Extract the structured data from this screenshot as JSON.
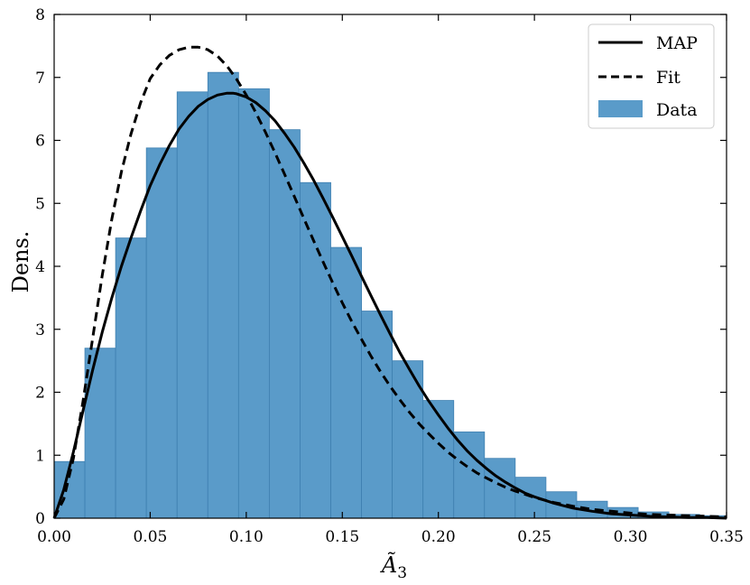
{
  "chart_data": {
    "type": "bar",
    "xlabel": "Ã₃",
    "ylabel": "Dens.",
    "xlim": [
      0,
      0.35
    ],
    "ylim": [
      0,
      8
    ],
    "grid": false,
    "legend_position": "top-right",
    "x_ticks": [
      "0.00",
      "0.05",
      "0.10",
      "0.15",
      "0.20",
      "0.25",
      "0.30",
      "0.35"
    ],
    "y_ticks": [
      "0",
      "1",
      "2",
      "3",
      "4",
      "5",
      "6",
      "7",
      "8"
    ],
    "histogram": {
      "name": "Data",
      "color": "#5a9bc9",
      "edge_color": "#3e7fb0",
      "bin_edges": [
        0.0,
        0.016,
        0.032,
        0.048,
        0.064,
        0.08,
        0.096,
        0.112,
        0.128,
        0.144,
        0.16,
        0.176,
        0.192,
        0.208,
        0.224,
        0.24,
        0.256,
        0.272,
        0.288,
        0.304,
        0.32,
        0.336,
        0.35
      ],
      "densities": [
        0.9,
        2.7,
        4.45,
        5.88,
        6.77,
        7.08,
        6.82,
        6.17,
        5.33,
        4.3,
        3.29,
        2.5,
        1.87,
        1.37,
        0.95,
        0.65,
        0.42,
        0.27,
        0.17,
        0.1,
        0.06,
        0.04
      ]
    },
    "series": [
      {
        "name": "MAP",
        "style": "solid",
        "color": "#000000",
        "x": [
          0.0,
          0.005,
          0.01,
          0.015,
          0.02,
          0.025,
          0.03,
          0.035,
          0.04,
          0.045,
          0.05,
          0.055,
          0.06,
          0.065,
          0.07,
          0.075,
          0.08,
          0.085,
          0.09,
          0.093,
          0.095,
          0.1,
          0.105,
          0.11,
          0.115,
          0.12,
          0.125,
          0.13,
          0.135,
          0.14,
          0.145,
          0.15,
          0.155,
          0.16,
          0.165,
          0.17,
          0.175,
          0.18,
          0.185,
          0.19,
          0.195,
          0.2,
          0.205,
          0.21,
          0.215,
          0.22,
          0.225,
          0.23,
          0.235,
          0.24,
          0.245,
          0.25,
          0.26,
          0.27,
          0.28,
          0.29,
          0.3,
          0.31,
          0.32,
          0.33,
          0.34,
          0.35
        ],
        "y": [
          0.0,
          0.45,
          1.05,
          1.7,
          2.35,
          2.95,
          3.5,
          4.0,
          4.45,
          4.88,
          5.28,
          5.62,
          5.92,
          6.18,
          6.38,
          6.54,
          6.65,
          6.72,
          6.75,
          6.75,
          6.74,
          6.69,
          6.6,
          6.47,
          6.31,
          6.11,
          5.89,
          5.64,
          5.37,
          5.08,
          4.78,
          4.47,
          4.16,
          3.84,
          3.53,
          3.22,
          2.92,
          2.63,
          2.36,
          2.1,
          1.86,
          1.64,
          1.43,
          1.24,
          1.07,
          0.92,
          0.79,
          0.67,
          0.57,
          0.48,
          0.4,
          0.34,
          0.24,
          0.16,
          0.11,
          0.07,
          0.05,
          0.03,
          0.02,
          0.01,
          0.01,
          0.0
        ]
      },
      {
        "name": "Fit",
        "style": "dashed",
        "color": "#000000",
        "x": [
          0.0,
          0.005,
          0.01,
          0.015,
          0.02,
          0.025,
          0.03,
          0.035,
          0.04,
          0.045,
          0.05,
          0.055,
          0.06,
          0.065,
          0.07,
          0.075,
          0.077,
          0.08,
          0.085,
          0.09,
          0.095,
          0.1,
          0.105,
          0.11,
          0.115,
          0.12,
          0.125,
          0.13,
          0.135,
          0.14,
          0.145,
          0.15,
          0.155,
          0.16,
          0.165,
          0.17,
          0.175,
          0.18,
          0.185,
          0.19,
          0.195,
          0.2,
          0.205,
          0.21,
          0.215,
          0.22,
          0.225,
          0.23,
          0.235,
          0.24,
          0.245,
          0.25,
          0.26,
          0.27,
          0.28,
          0.29,
          0.3,
          0.31,
          0.32,
          0.33,
          0.34,
          0.35
        ],
        "y": [
          0.0,
          0.3,
          0.95,
          1.85,
          2.85,
          3.85,
          4.75,
          5.5,
          6.1,
          6.6,
          6.98,
          7.2,
          7.35,
          7.44,
          7.48,
          7.48,
          7.47,
          7.44,
          7.34,
          7.18,
          6.97,
          6.72,
          6.44,
          6.13,
          5.8,
          5.46,
          5.11,
          4.76,
          4.41,
          4.07,
          3.74,
          3.42,
          3.12,
          2.84,
          2.57,
          2.32,
          2.09,
          1.88,
          1.68,
          1.5,
          1.34,
          1.19,
          1.05,
          0.93,
          0.82,
          0.72,
          0.64,
          0.56,
          0.49,
          0.43,
          0.38,
          0.33,
          0.25,
          0.19,
          0.14,
          0.11,
          0.08,
          0.06,
          0.05,
          0.04,
          0.03,
          0.02
        ]
      }
    ]
  }
}
